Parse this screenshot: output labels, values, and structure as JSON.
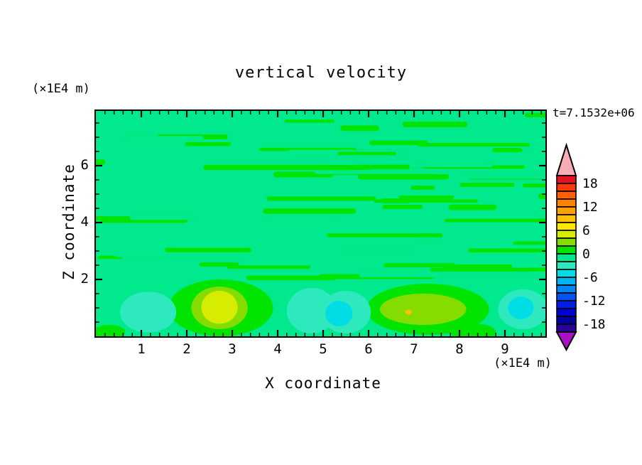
{
  "chart_data": {
    "type": "contour",
    "title": "vertical velocity",
    "timestamp": "t=7.1532e+06",
    "x_axis": {
      "label": "X coordinate",
      "unit": "(×1E4 m)",
      "min": 0,
      "max": 9.89,
      "major_ticks": [
        1,
        2,
        3,
        4,
        5,
        6,
        7,
        8,
        9
      ],
      "minor_step": 0.2
    },
    "z_axis": {
      "label": "Z coordinate",
      "unit": "(×1E4 m)",
      "min": 0,
      "max": 7.93,
      "major_ticks": [
        2,
        4,
        6
      ],
      "minor_step": 0.5
    },
    "colorbar": {
      "min": -20,
      "max": 20,
      "step": 2,
      "labels": [
        18,
        12,
        6,
        0,
        -6,
        -12,
        -18
      ],
      "colors_top_to_bottom": [
        "#E81123",
        "#FB3A09",
        "#FF6000",
        "#FF8300",
        "#FFA100",
        "#FFC100",
        "#FFE800",
        "#D6EC00",
        "#84DC00",
        "#00E400",
        "#00E98C",
        "#2FE9BE",
        "#00DDE4",
        "#00B4F2",
        "#0086F5",
        "#0053F0",
        "#001EE8",
        "#0000D2",
        "#0000A0",
        "#2B0096"
      ],
      "over_arrow_color": "#F6ADB4",
      "under_arrow_color": "#A811C6"
    },
    "field_description": "Background band -2..0 (spring green); wavy horizontal streaks of band 0..2 fill the region z>2; discrete up/downdraft cells near the bottom boundary z<2.",
    "streak_texture": {
      "seed": 9,
      "count": 190,
      "z_low": 1.95,
      "len_units": [
        0.45,
        2.9
      ],
      "thick_units": [
        0.1,
        0.2
      ]
    },
    "features": [
      {
        "x": 2.75,
        "z": 1.0,
        "rx": 1.15,
        "rz": 1.0,
        "value": 1
      },
      {
        "x": 2.72,
        "z": 1.0,
        "rx": 0.62,
        "rz": 0.75,
        "value": 3
      },
      {
        "x": 2.72,
        "z": 1.02,
        "rx": 0.4,
        "rz": 0.58,
        "value": 5
      },
      {
        "x": 7.3,
        "z": 0.95,
        "rx": 1.35,
        "rz": 0.9,
        "value": 1
      },
      {
        "x": 7.2,
        "z": 0.95,
        "rx": 0.95,
        "rz": 0.55,
        "value": 3
      },
      {
        "x": 6.88,
        "z": 0.85,
        "rx": 0.07,
        "rz": 0.09,
        "value": 9
      },
      {
        "x": 1.15,
        "z": 0.85,
        "rx": 0.62,
        "rz": 0.72,
        "value": -3
      },
      {
        "x": 4.75,
        "z": 0.9,
        "rx": 0.55,
        "rz": 0.8,
        "value": -3
      },
      {
        "x": 5.5,
        "z": 0.85,
        "rx": 0.55,
        "rz": 0.75,
        "value": -3
      },
      {
        "x": 5.35,
        "z": 0.8,
        "rx": 0.3,
        "rz": 0.45,
        "value": -5
      },
      {
        "x": 9.4,
        "z": 0.95,
        "rx": 0.55,
        "rz": 0.7,
        "value": -3
      },
      {
        "x": 9.35,
        "z": 1.0,
        "rx": 0.28,
        "rz": 0.4,
        "value": -5
      },
      {
        "x": 0.3,
        "z": 0.15,
        "rx": 0.35,
        "rz": 0.25,
        "value": 1
      },
      {
        "x": 8.3,
        "z": 0.15,
        "rx": 0.5,
        "rz": 0.3,
        "value": 1
      }
    ]
  }
}
